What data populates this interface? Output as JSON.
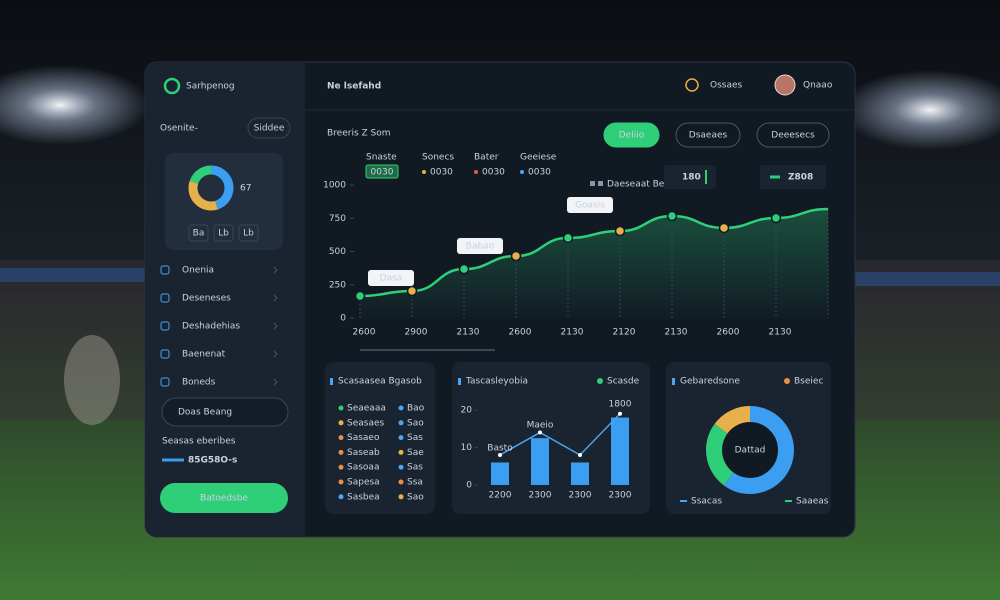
{
  "sidebar": {
    "brand": "Sarhpenog",
    "section_label": "Osenite-",
    "section_button": "Siddee",
    "gauge": {
      "type": "pie",
      "values": [
        45,
        35,
        20
      ],
      "colors": [
        "#3b9ef0",
        "#e8b04a",
        "#2fcf7a"
      ],
      "label": "67",
      "buttons": [
        "Ba",
        "Lb",
        "Lb"
      ]
    },
    "nav": [
      "Onenia",
      "Deseneses",
      "Deshadehias",
      "Baenenat",
      "Boneds"
    ],
    "input": "Doas Beang",
    "stat_label": "Seasas eberibes",
    "stat_value": "85G58O-s",
    "cta": "Batoedsbe"
  },
  "header": {
    "title": "Ne lsefahd",
    "status": "Ossaes",
    "user": "Qnaao"
  },
  "main": {
    "title": "Breeris Z Som",
    "tabs": [
      "Deliio",
      "Dsaeaes",
      "Deeesecs"
    ],
    "filters": [
      {
        "label": "Snaste",
        "chip": "0030"
      },
      {
        "label": "Sonecs",
        "chip": "0030"
      },
      {
        "label": "Bater",
        "chip": "0030"
      },
      {
        "label": "Geeiese",
        "chip": "0030"
      }
    ],
    "stat_label": "Daeseaat Besats",
    "stat_a": "180",
    "stat_b": "Z808"
  },
  "line_chart": {
    "type": "line",
    "categories": [
      "2600",
      "2900",
      "2130",
      "2600",
      "2130",
      "2120",
      "2130",
      "2600",
      "2130",
      null
    ],
    "values": [
      165,
      203,
      368,
      466,
      602,
      654,
      767,
      677,
      752,
      820
    ],
    "color": "#2fcf7a",
    "ylim": [
      0,
      1000
    ],
    "yticks": [
      0,
      250,
      500,
      750,
      1000
    ],
    "annotations": [
      "Dasa",
      "Babao",
      "Goasis"
    ]
  },
  "list_panel": {
    "title": "Scasaasea Bgasob",
    "rows": [
      {
        "label": "Seaeaaa",
        "value": "Bao"
      },
      {
        "label": "Seasaes",
        "value": "Sao"
      },
      {
        "label": "Sasaeo",
        "value": "Sas"
      },
      {
        "label": "Saseab",
        "value": "Sae"
      },
      {
        "label": "Sasoaa",
        "value": "Sas"
      },
      {
        "label": "Sapesa",
        "value": "Ssa"
      },
      {
        "label": "Sasbea",
        "value": "Sao"
      }
    ]
  },
  "bar_chart": {
    "type": "bar",
    "title": "Tascasleyobia",
    "categories": [
      "2200",
      "2300",
      "2300",
      "2300"
    ],
    "series": [
      {
        "name": "Scasde",
        "color": "#3b9ef0",
        "values": [
          6,
          12.5,
          6,
          18
        ]
      },
      {
        "color": "#4aa6f2",
        "values": [
          8,
          14,
          8,
          19
        ]
      }
    ],
    "ylim": [
      0,
      20
    ],
    "yticks": [
      0,
      10,
      20
    ],
    "annotations": [
      "Basto",
      "Maeio",
      "1800"
    ]
  },
  "donut": {
    "type": "pie",
    "title": "Gebaredsone",
    "legend": "Bseiec",
    "center": "Dattad",
    "values": [
      60,
      25,
      15
    ],
    "colors": [
      "#3b9ef0",
      "#2fcf7a",
      "#e8b04a"
    ],
    "footer": [
      "Ssacas",
      "Saaeas"
    ]
  }
}
